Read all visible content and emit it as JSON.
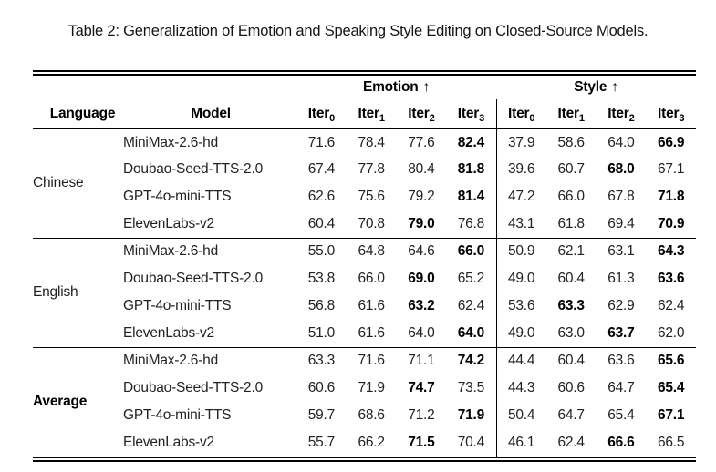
{
  "caption": "Table 2: Generalization of Emotion and Speaking Style Editing on Closed-Source Models.",
  "table": {
    "headers": {
      "language": "Language",
      "model": "Model",
      "emotion_group": "Emotion",
      "style_group": "Style",
      "up_arrow": "↑",
      "iter_label": "Iter",
      "iter_subscripts": [
        "0",
        "1",
        "2",
        "3"
      ]
    },
    "groups": [
      {
        "language": "Chinese",
        "bold_language": false,
        "rows": [
          {
            "model": "MiniMax-2.6-hd",
            "emotion": [
              "71.6",
              "78.4",
              "77.6",
              "82.4"
            ],
            "emotion_bold_index": 3,
            "style": [
              "37.9",
              "58.6",
              "64.0",
              "66.9"
            ],
            "style_bold_index": 3
          },
          {
            "model": "Doubao-Seed-TTS-2.0",
            "emotion": [
              "67.4",
              "77.8",
              "80.4",
              "81.8"
            ],
            "emotion_bold_index": 3,
            "style": [
              "39.6",
              "60.7",
              "68.0",
              "67.1"
            ],
            "style_bold_index": 2
          },
          {
            "model": "GPT-4o-mini-TTS",
            "emotion": [
              "62.6",
              "75.6",
              "79.2",
              "81.4"
            ],
            "emotion_bold_index": 3,
            "style": [
              "47.2",
              "66.0",
              "67.8",
              "71.8"
            ],
            "style_bold_index": 3
          },
          {
            "model": "ElevenLabs-v2",
            "emotion": [
              "60.4",
              "70.8",
              "79.0",
              "76.8"
            ],
            "emotion_bold_index": 2,
            "style": [
              "43.1",
              "61.8",
              "69.4",
              "70.9"
            ],
            "style_bold_index": 3
          }
        ]
      },
      {
        "language": "English",
        "bold_language": false,
        "rows": [
          {
            "model": "MiniMax-2.6-hd",
            "emotion": [
              "55.0",
              "64.8",
              "64.6",
              "66.0"
            ],
            "emotion_bold_index": 3,
            "style": [
              "50.9",
              "62.1",
              "63.1",
              "64.3"
            ],
            "style_bold_index": 3
          },
          {
            "model": "Doubao-Seed-TTS-2.0",
            "emotion": [
              "53.8",
              "66.0",
              "69.0",
              "65.2"
            ],
            "emotion_bold_index": 2,
            "style": [
              "49.0",
              "60.4",
              "61.3",
              "63.6"
            ],
            "style_bold_index": 3
          },
          {
            "model": "GPT-4o-mini-TTS",
            "emotion": [
              "56.8",
              "61.6",
              "63.2",
              "62.4"
            ],
            "emotion_bold_index": 2,
            "style": [
              "53.6",
              "63.3",
              "62.9",
              "62.4"
            ],
            "style_bold_index": 1
          },
          {
            "model": "ElevenLabs-v2",
            "emotion": [
              "51.0",
              "61.6",
              "64.0",
              "64.0"
            ],
            "emotion_bold_index": 3,
            "style": [
              "49.0",
              "63.0",
              "63.7",
              "62.0"
            ],
            "style_bold_index": 2
          }
        ]
      },
      {
        "language": "Average",
        "bold_language": true,
        "rows": [
          {
            "model": "MiniMax-2.6-hd",
            "emotion": [
              "63.3",
              "71.6",
              "71.1",
              "74.2"
            ],
            "emotion_bold_index": 3,
            "style": [
              "44.4",
              "60.4",
              "63.6",
              "65.6"
            ],
            "style_bold_index": 3
          },
          {
            "model": "Doubao-Seed-TTS-2.0",
            "emotion": [
              "60.6",
              "71.9",
              "74.7",
              "73.5"
            ],
            "emotion_bold_index": 2,
            "style": [
              "44.3",
              "60.6",
              "64.7",
              "65.4"
            ],
            "style_bold_index": 3
          },
          {
            "model": "GPT-4o-mini-TTS",
            "emotion": [
              "59.7",
              "68.6",
              "71.2",
              "71.9"
            ],
            "emotion_bold_index": 3,
            "style": [
              "50.4",
              "64.7",
              "65.4",
              "67.1"
            ],
            "style_bold_index": 3
          },
          {
            "model": "ElevenLabs-v2",
            "emotion": [
              "55.7",
              "66.2",
              "71.5",
              "70.4"
            ],
            "emotion_bold_index": 2,
            "style": [
              "46.1",
              "62.4",
              "66.6",
              "66.5"
            ],
            "style_bold_index": 2
          }
        ]
      }
    ]
  }
}
